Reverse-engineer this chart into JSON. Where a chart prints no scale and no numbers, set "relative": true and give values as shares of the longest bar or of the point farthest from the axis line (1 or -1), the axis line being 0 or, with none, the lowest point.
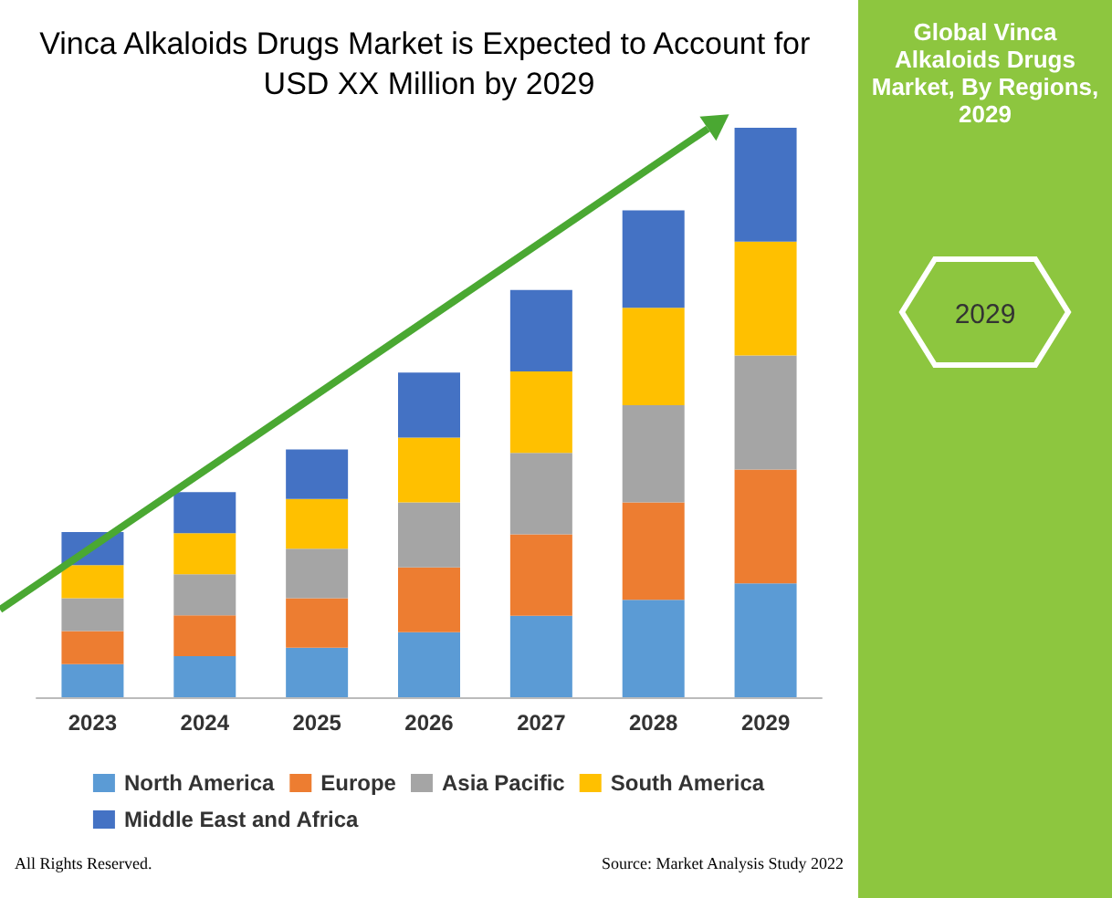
{
  "chart_data": [
    {
      "type": "bar",
      "title": "Vinca Alkaloids Drugs Market is Expected to Account for USD XX Million by 2029",
      "relative": true,
      "stacked": true,
      "legend": "bottom",
      "categories": [
        "2023",
        "2024",
        "2025",
        "2026",
        "2027",
        "2028",
        "2029"
      ],
      "series": [
        {
          "name": "North America",
          "color": "#5b9bd5",
          "values": [
            0.058,
            0.072,
            0.087,
            0.114,
            0.143,
            0.171,
            0.2
          ]
        },
        {
          "name": "Europe",
          "color": "#ed7d31",
          "values": [
            0.058,
            0.072,
            0.087,
            0.114,
            0.143,
            0.171,
            0.2
          ]
        },
        {
          "name": "Asia Pacific",
          "color": "#a5a5a5",
          "values": [
            0.058,
            0.072,
            0.087,
            0.114,
            0.143,
            0.171,
            0.2
          ]
        },
        {
          "name": "South America",
          "color": "#ffc000",
          "values": [
            0.058,
            0.072,
            0.087,
            0.114,
            0.143,
            0.171,
            0.2
          ]
        },
        {
          "name": "Middle East and Africa",
          "color": "#4472c4",
          "values": [
            0.058,
            0.072,
            0.087,
            0.114,
            0.143,
            0.171,
            0.2
          ]
        }
      ],
      "annotations": [
        "All Rights Reserved.",
        "Source: Market Analysis Study 2022"
      ]
    },
    {
      "type": "other",
      "title": "Global Vinca Alkaloids Drugs Market, By Regions, 2029",
      "annotations": [
        "2029"
      ]
    }
  ]
}
